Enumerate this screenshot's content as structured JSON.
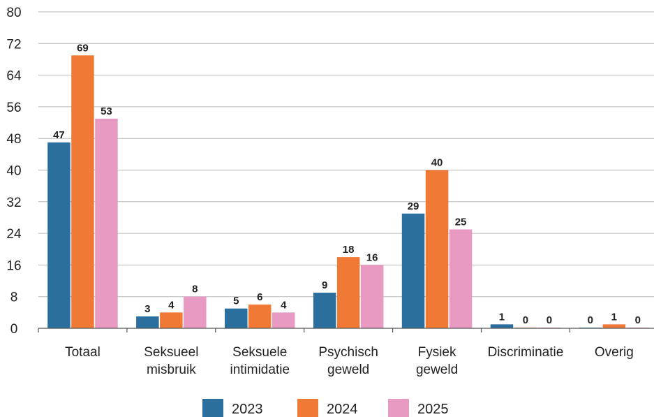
{
  "chart_data": {
    "type": "bar",
    "title": "",
    "xlabel": "",
    "ylabel": "",
    "ylim": [
      0,
      80
    ],
    "yticks": [
      0,
      8,
      16,
      24,
      32,
      40,
      48,
      56,
      64,
      72,
      80
    ],
    "grid": true,
    "legend_position": "bottom",
    "categories": [
      [
        "Totaal"
      ],
      [
        "Seksueel",
        "misbruik"
      ],
      [
        "Seksuele",
        "intimidatie"
      ],
      [
        "Psychisch",
        "geweld"
      ],
      [
        "Fysiek",
        "geweld"
      ],
      [
        "Discriminatie"
      ],
      [
        "Overig"
      ]
    ],
    "series": [
      {
        "name": "2023",
        "color": "#2a6f9e",
        "values": [
          47,
          3,
          5,
          9,
          29,
          1,
          0
        ]
      },
      {
        "name": "2024",
        "color": "#f07a35",
        "values": [
          69,
          4,
          6,
          18,
          40,
          0,
          1
        ]
      },
      {
        "name": "2025",
        "color": "#e89ac3",
        "values": [
          53,
          8,
          4,
          16,
          25,
          0,
          0
        ]
      }
    ]
  }
}
